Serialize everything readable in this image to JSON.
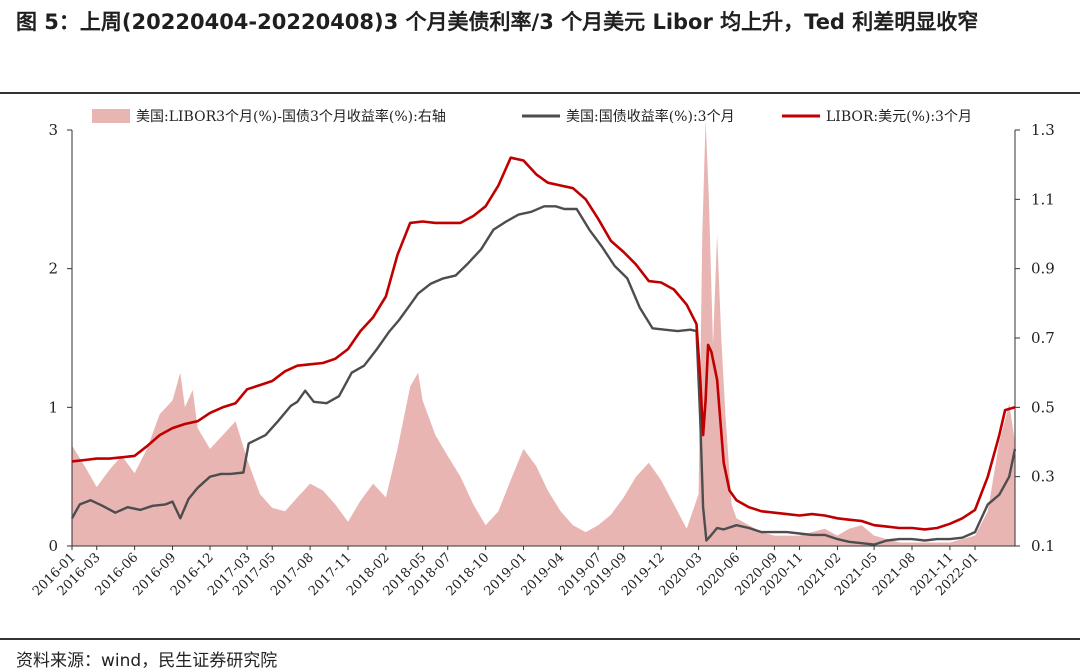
{
  "header": {
    "title": "图 5：上周(20220404-20220408)3 个月美债利率/3 个月美元 Libor 均上升，Ted 利差明显收窄"
  },
  "footer": {
    "source": "资料来源：wind，民生证券研究院"
  },
  "chart_data": {
    "type": "line",
    "x_ticks": [
      "2016-01",
      "2016-03",
      "2016-06",
      "2016-09",
      "2016-12",
      "2017-03",
      "2017-05",
      "2017-08",
      "2017-11",
      "2018-02",
      "2018-05",
      "2018-07",
      "2018-10",
      "2019-01",
      "2019-04",
      "2019-07",
      "2019-09",
      "2019-12",
      "2020-03",
      "2020-06",
      "2020-09",
      "2020-11",
      "2021-02",
      "2021-05",
      "2021-08",
      "2021-11",
      "2022-01"
    ],
    "x_tick_dates": [
      "2016-01",
      "2016-03",
      "2016-06",
      "2016-09",
      "2016-12",
      "2017-03",
      "2017-05",
      "2017-08",
      "2017-11",
      "2018-02",
      "2018-05",
      "2018-07",
      "2018-10",
      "2019-01",
      "2019-04",
      "2019-07",
      "2019-09",
      "2019-12",
      "2020-03",
      "2020-06",
      "2020-09",
      "2020-11",
      "2021-02",
      "2021-05",
      "2021-08",
      "2021-11",
      "2022-01"
    ],
    "x_range": [
      "2016-01-01",
      "2022-04-08"
    ],
    "y_left": {
      "ylim": [
        0,
        3
      ],
      "ticks": [
        "0",
        "1",
        "2",
        "3"
      ]
    },
    "y_right": {
      "ylim": [
        0.1,
        1.3
      ],
      "ticks": [
        "0.1",
        "0.3",
        "0.5",
        "0.7",
        "0.9",
        "1.1",
        "1.3"
      ]
    },
    "grid": false,
    "legend_position": "top",
    "series": [
      {
        "name": "美国:LIBOR3个月(%)-国债3个月收益率(%):右轴",
        "kind": "area",
        "axis": "right",
        "color": "#e8b5b3",
        "points": [
          [
            "2016-01-01",
            0.39
          ],
          [
            "2016-02-01",
            0.33
          ],
          [
            "2016-03-01",
            0.27
          ],
          [
            "2016-04-01",
            0.32
          ],
          [
            "2016-05-01",
            0.36
          ],
          [
            "2016-06-01",
            0.31
          ],
          [
            "2016-07-01",
            0.38
          ],
          [
            "2016-08-01",
            0.48
          ],
          [
            "2016-09-01",
            0.52
          ],
          [
            "2016-09-20",
            0.6
          ],
          [
            "2016-10-01",
            0.5
          ],
          [
            "2016-10-20",
            0.55
          ],
          [
            "2016-11-01",
            0.44
          ],
          [
            "2016-12-01",
            0.38
          ],
          [
            "2017-01-01",
            0.42
          ],
          [
            "2017-02-01",
            0.46
          ],
          [
            "2017-03-01",
            0.35
          ],
          [
            "2017-04-01",
            0.25
          ],
          [
            "2017-05-01",
            0.21
          ],
          [
            "2017-06-01",
            0.2
          ],
          [
            "2017-07-01",
            0.24
          ],
          [
            "2017-08-01",
            0.28
          ],
          [
            "2017-09-01",
            0.26
          ],
          [
            "2017-10-01",
            0.22
          ],
          [
            "2017-11-01",
            0.17
          ],
          [
            "2017-12-01",
            0.23
          ],
          [
            "2018-01-01",
            0.28
          ],
          [
            "2018-02-01",
            0.24
          ],
          [
            "2018-03-01",
            0.38
          ],
          [
            "2018-04-01",
            0.56
          ],
          [
            "2018-04-20",
            0.6
          ],
          [
            "2018-05-01",
            0.52
          ],
          [
            "2018-06-01",
            0.42
          ],
          [
            "2018-07-01",
            0.36
          ],
          [
            "2018-08-01",
            0.3
          ],
          [
            "2018-09-01",
            0.22
          ],
          [
            "2018-10-01",
            0.16
          ],
          [
            "2018-11-01",
            0.2
          ],
          [
            "2018-12-01",
            0.29
          ],
          [
            "2019-01-01",
            0.38
          ],
          [
            "2019-02-01",
            0.33
          ],
          [
            "2019-03-01",
            0.26
          ],
          [
            "2019-04-01",
            0.2
          ],
          [
            "2019-05-01",
            0.16
          ],
          [
            "2019-06-01",
            0.14
          ],
          [
            "2019-07-01",
            0.16
          ],
          [
            "2019-08-01",
            0.19
          ],
          [
            "2019-09-01",
            0.24
          ],
          [
            "2019-10-01",
            0.3
          ],
          [
            "2019-11-01",
            0.34
          ],
          [
            "2019-12-01",
            0.29
          ],
          [
            "2020-01-01",
            0.22
          ],
          [
            "2020-02-01",
            0.15
          ],
          [
            "2020-03-01",
            0.25
          ],
          [
            "2020-03-10",
            1.0
          ],
          [
            "2020-03-18",
            1.36
          ],
          [
            "2020-03-26",
            1.1
          ],
          [
            "2020-04-05",
            0.68
          ],
          [
            "2020-04-15",
            1.0
          ],
          [
            "2020-04-25",
            0.7
          ],
          [
            "2020-05-05",
            0.48
          ],
          [
            "2020-05-20",
            0.22
          ],
          [
            "2020-06-01",
            0.18
          ],
          [
            "2020-07-01",
            0.16
          ],
          [
            "2020-08-01",
            0.14
          ],
          [
            "2020-09-01",
            0.13
          ],
          [
            "2020-10-01",
            0.13
          ],
          [
            "2020-11-01",
            0.13
          ],
          [
            "2020-12-01",
            0.14
          ],
          [
            "2021-01-01",
            0.15
          ],
          [
            "2021-02-01",
            0.13
          ],
          [
            "2021-03-01",
            0.15
          ],
          [
            "2021-04-01",
            0.16
          ],
          [
            "2021-05-01",
            0.13
          ],
          [
            "2021-06-01",
            0.12
          ],
          [
            "2021-07-01",
            0.11
          ],
          [
            "2021-08-01",
            0.11
          ],
          [
            "2021-09-01",
            0.11
          ],
          [
            "2021-10-01",
            0.11
          ],
          [
            "2021-11-01",
            0.11
          ],
          [
            "2021-12-01",
            0.12
          ],
          [
            "2022-01-01",
            0.13
          ],
          [
            "2022-02-01",
            0.2
          ],
          [
            "2022-03-01",
            0.4
          ],
          [
            "2022-03-25",
            0.51
          ],
          [
            "2022-04-08",
            0.4
          ]
        ]
      },
      {
        "name": "美国:国债收益率(%):3个月",
        "kind": "line",
        "axis": "left",
        "color": "#4d4d4d",
        "points": [
          [
            "2016-01-01",
            0.2
          ],
          [
            "2016-01-20",
            0.3
          ],
          [
            "2016-02-15",
            0.33
          ],
          [
            "2016-03-15",
            0.29
          ],
          [
            "2016-04-15",
            0.24
          ],
          [
            "2016-05-15",
            0.28
          ],
          [
            "2016-06-15",
            0.26
          ],
          [
            "2016-07-15",
            0.29
          ],
          [
            "2016-08-15",
            0.3
          ],
          [
            "2016-09-01",
            0.32
          ],
          [
            "2016-09-20",
            0.2
          ],
          [
            "2016-10-10",
            0.34
          ],
          [
            "2016-11-01",
            0.42
          ],
          [
            "2016-12-01",
            0.5
          ],
          [
            "2016-12-28",
            0.52
          ],
          [
            "2017-01-20",
            0.52
          ],
          [
            "2017-02-20",
            0.53
          ],
          [
            "2017-03-05",
            0.74
          ],
          [
            "2017-04-15",
            0.8
          ],
          [
            "2017-05-15",
            0.9
          ],
          [
            "2017-06-15",
            1.01
          ],
          [
            "2017-07-01",
            1.04
          ],
          [
            "2017-07-20",
            1.12
          ],
          [
            "2017-08-10",
            1.04
          ],
          [
            "2017-09-10",
            1.03
          ],
          [
            "2017-10-10",
            1.08
          ],
          [
            "2017-11-10",
            1.25
          ],
          [
            "2017-12-10",
            1.3
          ],
          [
            "2018-01-10",
            1.42
          ],
          [
            "2018-02-10",
            1.55
          ],
          [
            "2018-03-05",
            1.63
          ],
          [
            "2018-04-01",
            1.74
          ],
          [
            "2018-04-20",
            1.82
          ],
          [
            "2018-05-20",
            1.89
          ],
          [
            "2018-06-20",
            1.93
          ],
          [
            "2018-07-20",
            1.95
          ],
          [
            "2018-08-20",
            2.04
          ],
          [
            "2018-09-20",
            2.14
          ],
          [
            "2018-10-20",
            2.28
          ],
          [
            "2018-11-20",
            2.34
          ],
          [
            "2018-12-20",
            2.39
          ],
          [
            "2019-01-20",
            2.41
          ],
          [
            "2019-02-20",
            2.45
          ],
          [
            "2019-03-20",
            2.45
          ],
          [
            "2019-04-10",
            2.43
          ],
          [
            "2019-05-10",
            2.43
          ],
          [
            "2019-06-10",
            2.28
          ],
          [
            "2019-07-10",
            2.16
          ],
          [
            "2019-08-10",
            2.02
          ],
          [
            "2019-09-10",
            1.93
          ],
          [
            "2019-10-10",
            1.72
          ],
          [
            "2019-11-10",
            1.57
          ],
          [
            "2019-12-10",
            1.56
          ],
          [
            "2020-01-10",
            1.55
          ],
          [
            "2020-02-10",
            1.56
          ],
          [
            "2020-02-25",
            1.55
          ],
          [
            "2020-03-05",
            0.9
          ],
          [
            "2020-03-12",
            0.28
          ],
          [
            "2020-03-20",
            0.04
          ],
          [
            "2020-04-01",
            0.08
          ],
          [
            "2020-04-15",
            0.13
          ],
          [
            "2020-05-01",
            0.12
          ],
          [
            "2020-06-01",
            0.15
          ],
          [
            "2020-07-01",
            0.13
          ],
          [
            "2020-08-01",
            0.1
          ],
          [
            "2020-09-01",
            0.1
          ],
          [
            "2020-10-01",
            0.1
          ],
          [
            "2020-11-01",
            0.09
          ],
          [
            "2020-12-01",
            0.08
          ],
          [
            "2021-01-01",
            0.08
          ],
          [
            "2021-02-01",
            0.05
          ],
          [
            "2021-03-01",
            0.03
          ],
          [
            "2021-04-01",
            0.02
          ],
          [
            "2021-05-01",
            0.01
          ],
          [
            "2021-06-01",
            0.04
          ],
          [
            "2021-07-01",
            0.05
          ],
          [
            "2021-08-01",
            0.05
          ],
          [
            "2021-09-01",
            0.04
          ],
          [
            "2021-10-01",
            0.05
          ],
          [
            "2021-11-01",
            0.05
          ],
          [
            "2021-12-01",
            0.06
          ],
          [
            "2022-01-01",
            0.1
          ],
          [
            "2022-02-01",
            0.3
          ],
          [
            "2022-03-01",
            0.37
          ],
          [
            "2022-03-25",
            0.5
          ],
          [
            "2022-04-08",
            0.7
          ]
        ]
      },
      {
        "name": "LIBOR:美元(%):3个月",
        "kind": "line",
        "axis": "left",
        "color": "#c00000",
        "points": [
          [
            "2016-01-01",
            0.61
          ],
          [
            "2016-02-01",
            0.62
          ],
          [
            "2016-03-01",
            0.63
          ],
          [
            "2016-04-01",
            0.63
          ],
          [
            "2016-05-01",
            0.64
          ],
          [
            "2016-06-01",
            0.65
          ],
          [
            "2016-07-01",
            0.72
          ],
          [
            "2016-08-01",
            0.8
          ],
          [
            "2016-09-01",
            0.85
          ],
          [
            "2016-10-01",
            0.88
          ],
          [
            "2016-11-01",
            0.9
          ],
          [
            "2016-12-01",
            0.96
          ],
          [
            "2017-01-01",
            1.0
          ],
          [
            "2017-02-01",
            1.03
          ],
          [
            "2017-03-01",
            1.13
          ],
          [
            "2017-04-01",
            1.16
          ],
          [
            "2017-05-01",
            1.19
          ],
          [
            "2017-06-01",
            1.26
          ],
          [
            "2017-07-01",
            1.3
          ],
          [
            "2017-08-01",
            1.31
          ],
          [
            "2017-09-01",
            1.32
          ],
          [
            "2017-10-01",
            1.35
          ],
          [
            "2017-11-01",
            1.42
          ],
          [
            "2017-12-01",
            1.55
          ],
          [
            "2018-01-01",
            1.65
          ],
          [
            "2018-02-01",
            1.8
          ],
          [
            "2018-03-01",
            2.1
          ],
          [
            "2018-04-01",
            2.33
          ],
          [
            "2018-05-01",
            2.34
          ],
          [
            "2018-06-01",
            2.33
          ],
          [
            "2018-07-01",
            2.33
          ],
          [
            "2018-08-01",
            2.33
          ],
          [
            "2018-09-01",
            2.38
          ],
          [
            "2018-10-01",
            2.45
          ],
          [
            "2018-11-01",
            2.6
          ],
          [
            "2018-12-01",
            2.8
          ],
          [
            "2019-01-01",
            2.78
          ],
          [
            "2019-02-01",
            2.68
          ],
          [
            "2019-03-01",
            2.62
          ],
          [
            "2019-04-01",
            2.6
          ],
          [
            "2019-05-01",
            2.58
          ],
          [
            "2019-06-01",
            2.5
          ],
          [
            "2019-07-01",
            2.36
          ],
          [
            "2019-08-01",
            2.2
          ],
          [
            "2019-09-01",
            2.12
          ],
          [
            "2019-10-01",
            2.03
          ],
          [
            "2019-11-01",
            1.91
          ],
          [
            "2019-12-01",
            1.9
          ],
          [
            "2020-01-01",
            1.85
          ],
          [
            "2020-02-01",
            1.74
          ],
          [
            "2020-02-25",
            1.6
          ],
          [
            "2020-03-05",
            1.2
          ],
          [
            "2020-03-12",
            0.8
          ],
          [
            "2020-03-18",
            1.05
          ],
          [
            "2020-03-24",
            1.45
          ],
          [
            "2020-04-01",
            1.4
          ],
          [
            "2020-04-15",
            1.2
          ],
          [
            "2020-05-01",
            0.6
          ],
          [
            "2020-05-15",
            0.4
          ],
          [
            "2020-06-01",
            0.33
          ],
          [
            "2020-07-01",
            0.28
          ],
          [
            "2020-08-01",
            0.25
          ],
          [
            "2020-09-01",
            0.24
          ],
          [
            "2020-10-01",
            0.23
          ],
          [
            "2020-11-01",
            0.22
          ],
          [
            "2020-12-01",
            0.23
          ],
          [
            "2021-01-01",
            0.22
          ],
          [
            "2021-02-01",
            0.2
          ],
          [
            "2021-03-01",
            0.19
          ],
          [
            "2021-04-01",
            0.18
          ],
          [
            "2021-05-01",
            0.15
          ],
          [
            "2021-06-01",
            0.14
          ],
          [
            "2021-07-01",
            0.13
          ],
          [
            "2021-08-01",
            0.13
          ],
          [
            "2021-09-01",
            0.12
          ],
          [
            "2021-10-01",
            0.13
          ],
          [
            "2021-11-01",
            0.16
          ],
          [
            "2021-12-01",
            0.2
          ],
          [
            "2022-01-01",
            0.26
          ],
          [
            "2022-02-01",
            0.5
          ],
          [
            "2022-03-01",
            0.8
          ],
          [
            "2022-03-15",
            0.98
          ],
          [
            "2022-04-08",
            1.0
          ]
        ]
      }
    ]
  }
}
